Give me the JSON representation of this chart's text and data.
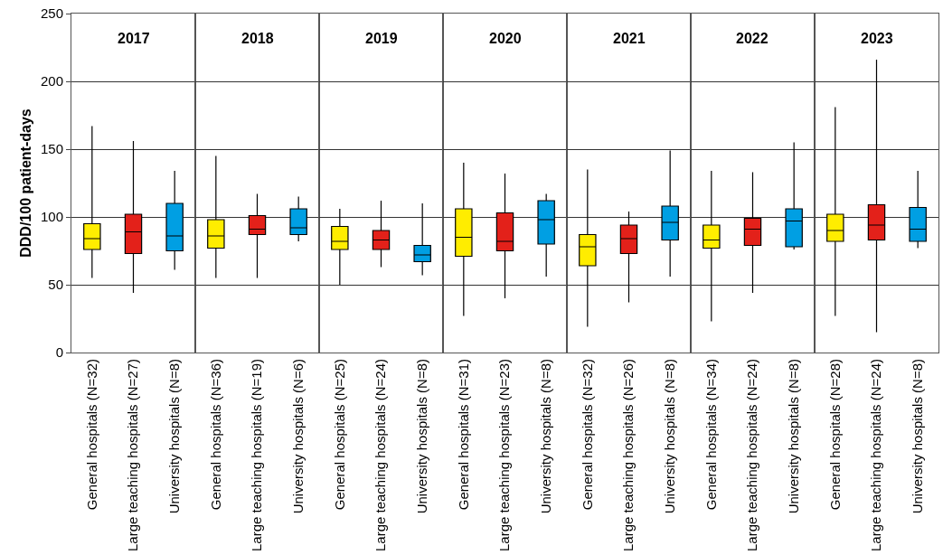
{
  "chart_data": [
    {
      "type": "box",
      "title": "2017",
      "ylabel": "DDD/100 patient-days",
      "categories": [
        "General hospitals (N=32)",
        "Large teaching hospitals (N=27)",
        "University hospitals (N=8)"
      ],
      "colors": [
        "#ffed00",
        "#e3211a",
        "#009fe3"
      ],
      "boxes": [
        {
          "low": 55,
          "q1": 76,
          "median": 84,
          "q3": 95,
          "high": 167
        },
        {
          "low": 44,
          "q1": 73,
          "median": 89,
          "q3": 102,
          "high": 156
        },
        {
          "low": 61,
          "q1": 75,
          "median": 86,
          "q3": 110,
          "high": 134
        }
      ],
      "ylim": [
        0,
        250
      ],
      "yticks": [
        0,
        50,
        100,
        150,
        200,
        250
      ],
      "grid": "y"
    },
    {
      "type": "box",
      "title": "2018",
      "categories": [
        "General hospitals (N=36)",
        "Large teaching hospitals (N=19)",
        "University hospitals (N=6)"
      ],
      "colors": [
        "#ffed00",
        "#e3211a",
        "#009fe3"
      ],
      "boxes": [
        {
          "low": 55,
          "q1": 77,
          "median": 86,
          "q3": 98,
          "high": 145
        },
        {
          "low": 55,
          "q1": 87,
          "median": 91,
          "q3": 101,
          "high": 117
        },
        {
          "low": 82,
          "q1": 87,
          "median": 92,
          "q3": 106,
          "high": 115
        }
      ],
      "ylim": [
        0,
        250
      ],
      "yticks": [
        0,
        50,
        100,
        150,
        200,
        250
      ],
      "grid": "y",
      "tick_labels": "x"
    },
    {
      "type": "box",
      "title": "2019",
      "categories": [
        "General hospitals (N=25)",
        "Large teaching hospitals (N=24)",
        "University hospitals (N=8)"
      ],
      "colors": [
        "#ffed00",
        "#e3211a",
        "#009fe3"
      ],
      "boxes": [
        {
          "low": 50,
          "q1": 76,
          "median": 82,
          "q3": 93,
          "high": 106
        },
        {
          "low": 63,
          "q1": 76,
          "median": 83,
          "q3": 90,
          "high": 112
        },
        {
          "low": 57,
          "q1": 67,
          "median": 72,
          "q3": 79,
          "high": 110
        }
      ],
      "ylim": [
        0,
        250
      ],
      "yticks": [
        0,
        50,
        100,
        150,
        200,
        250
      ],
      "grid": "y",
      "tick_labels": "x"
    },
    {
      "type": "box",
      "title": "2020",
      "categories": [
        "General hospitals (N=31)",
        "Large teaching hospitals (N=23)",
        "University hospitals (N=8)"
      ],
      "colors": [
        "#ffed00",
        "#e3211a",
        "#009fe3"
      ],
      "boxes": [
        {
          "low": 27,
          "q1": 71,
          "median": 85,
          "q3": 106,
          "high": 140
        },
        {
          "low": 40,
          "q1": 75,
          "median": 82,
          "q3": 103,
          "high": 132
        },
        {
          "low": 56,
          "q1": 80,
          "median": 98,
          "q3": 112,
          "high": 117
        }
      ],
      "ylim": [
        0,
        250
      ],
      "yticks": [
        0,
        50,
        100,
        150,
        200,
        250
      ],
      "grid": "y",
      "tick_labels": "x"
    },
    {
      "type": "box",
      "title": "2021",
      "categories": [
        "General hospitals (N=32)",
        "Large teaching hospitals (N=26)",
        "University hospitals (N=8)"
      ],
      "colors": [
        "#ffed00",
        "#e3211a",
        "#009fe3"
      ],
      "boxes": [
        {
          "low": 19,
          "q1": 64,
          "median": 78,
          "q3": 87,
          "high": 135
        },
        {
          "low": 37,
          "q1": 73,
          "median": 84,
          "q3": 94,
          "high": 104
        },
        {
          "low": 56,
          "q1": 83,
          "median": 96,
          "q3": 108,
          "high": 149
        }
      ],
      "ylim": [
        0,
        250
      ],
      "yticks": [
        0,
        50,
        100,
        150,
        200,
        250
      ],
      "grid": "y",
      "tick_labels": "x"
    },
    {
      "type": "box",
      "title": "2022",
      "categories": [
        "General hospitals (N=34)",
        "Large teaching hospitals (N=24)",
        "University hospitals (N=8)"
      ],
      "colors": [
        "#ffed00",
        "#e3211a",
        "#009fe3"
      ],
      "boxes": [
        {
          "low": 23,
          "q1": 77,
          "median": 83,
          "q3": 94,
          "high": 134
        },
        {
          "low": 44,
          "q1": 79,
          "median": 91,
          "q3": 99,
          "high": 133
        },
        {
          "low": 76,
          "q1": 78,
          "median": 97,
          "q3": 106,
          "high": 155
        }
      ],
      "ylim": [
        0,
        250
      ],
      "yticks": [
        0,
        50,
        100,
        150,
        200,
        250
      ],
      "grid": "y",
      "tick_labels": "x"
    },
    {
      "type": "box",
      "title": "2023",
      "categories": [
        "General hospitals (N=28)",
        "Large teaching hospitals (N=24)",
        "University hospitals (N=8)"
      ],
      "colors": [
        "#ffed00",
        "#e3211a",
        "#009fe3"
      ],
      "boxes": [
        {
          "low": 27,
          "q1": 82,
          "median": 90,
          "q3": 102,
          "high": 181
        },
        {
          "low": 15,
          "q1": 83,
          "median": 94,
          "q3": 109,
          "high": 216
        },
        {
          "low": 77,
          "q1": 82,
          "median": 91,
          "q3": 107,
          "high": 134
        }
      ],
      "ylim": [
        0,
        250
      ],
      "yticks": [
        0,
        50,
        100,
        150,
        200,
        250
      ],
      "grid": "y",
      "tick_labels": "x"
    }
  ]
}
